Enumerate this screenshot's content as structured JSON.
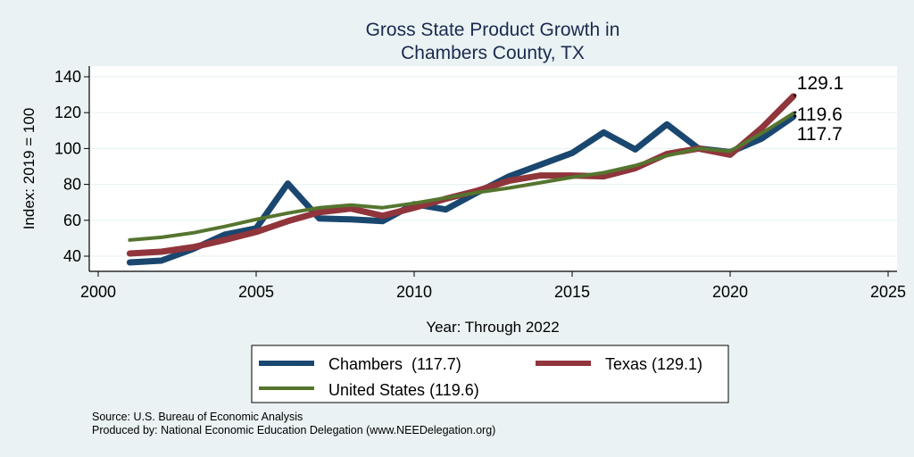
{
  "chart_data": {
    "type": "line",
    "title": [
      "Gross State Product Growth in",
      "Chambers County, TX"
    ],
    "xlabel": "Year: Through 2022",
    "ylabel": "Index: 2019 = 100",
    "xlim": [
      2000,
      2025
    ],
    "ylim": [
      32,
      145
    ],
    "x_ticks": [
      2000,
      2005,
      2010,
      2015,
      2020,
      2025
    ],
    "y_ticks": [
      40,
      60,
      80,
      100,
      120,
      140
    ],
    "grid": "horizontal",
    "x": [
      2001,
      2002,
      2003,
      2004,
      2005,
      2006,
      2007,
      2008,
      2009,
      2010,
      2011,
      2012,
      2013,
      2014,
      2015,
      2016,
      2017,
      2018,
      2019,
      2020,
      2021,
      2022
    ],
    "series": [
      {
        "name": "Chambers",
        "legend_label": "Chambers  (117.7)",
        "color": "#1a476f",
        "end_label": "117.7",
        "values": [
          36.5,
          37.5,
          44.0,
          52.0,
          55.5,
          80.5,
          61.0,
          60.5,
          59.5,
          69.0,
          66.0,
          75.5,
          84.5,
          91.0,
          97.5,
          109.0,
          99.5,
          113.5,
          100.0,
          98.0,
          105.5,
          117.7
        ]
      },
      {
        "name": "Texas",
        "legend_label": "Texas (129.1)",
        "color": "#90353b",
        "end_label": "129.1",
        "values": [
          41.5,
          42.5,
          45.0,
          49.0,
          53.5,
          59.5,
          64.5,
          66.5,
          62.5,
          67.0,
          72.0,
          76.5,
          82.0,
          85.0,
          85.0,
          84.5,
          89.0,
          97.0,
          100.0,
          96.5,
          111.5,
          129.1
        ]
      },
      {
        "name": "United States",
        "legend_label": "United States (119.6)",
        "color": "#55752f",
        "end_label": "119.6",
        "values": [
          49.0,
          50.5,
          53.0,
          56.5,
          60.5,
          64.0,
          67.0,
          68.5,
          67.0,
          69.5,
          72.5,
          75.5,
          78.0,
          81.0,
          84.0,
          86.5,
          90.5,
          96.0,
          100.0,
          98.5,
          108.5,
          119.6
        ]
      }
    ],
    "legend_position": "bottom",
    "notes": [
      "Source: U.S. Bureau of Economic Analysis",
      "Produced by: National Economic Education Delegation (www.NEEDelegation.org)"
    ]
  }
}
